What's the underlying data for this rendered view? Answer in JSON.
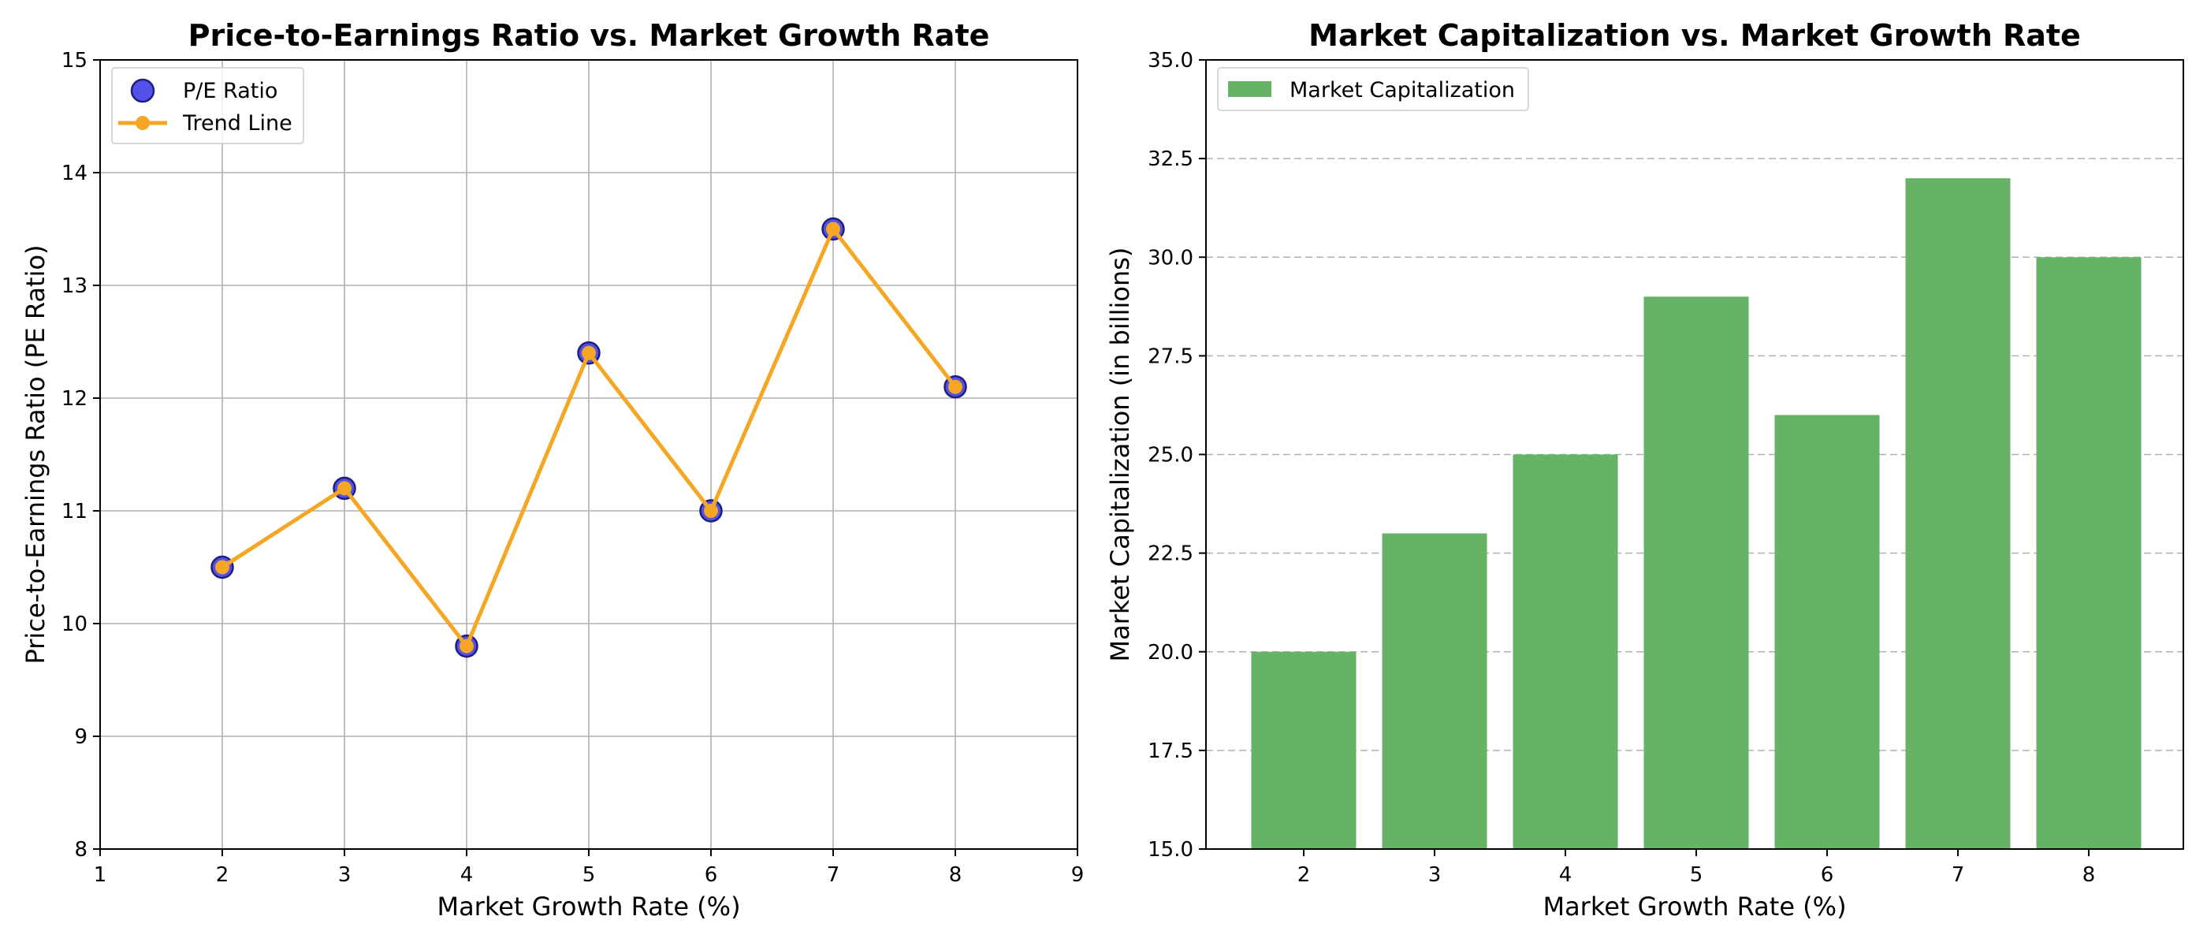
{
  "chart_data": [
    {
      "type": "scatter",
      "title": "Price-to-Earnings Ratio vs. Market Growth Rate",
      "xlabel": "Market Growth Rate (%)",
      "ylabel": "Price-to-Earnings Ratio (PE Ratio)",
      "xlim": [
        1,
        9
      ],
      "ylim": [
        8,
        15
      ],
      "xticks": [
        "1",
        "2",
        "3",
        "4",
        "5",
        "6",
        "7",
        "8",
        "9"
      ],
      "yticks": [
        "8",
        "9",
        "10",
        "11",
        "12",
        "13",
        "14",
        "15"
      ],
      "grid": true,
      "legend_position": "top-left",
      "x": [
        2,
        3,
        4,
        5,
        6,
        7,
        8
      ],
      "series": [
        {
          "name": "P/E Ratio",
          "kind": "scatter",
          "values": [
            10.5,
            11.2,
            9.8,
            12.4,
            11.0,
            13.5,
            12.1
          ],
          "color": "#4b48e8",
          "edge_color": "#1f1f7a"
        },
        {
          "name": "Trend Line",
          "kind": "line",
          "values": [
            10.5,
            11.2,
            9.8,
            12.4,
            11.0,
            13.5,
            12.1
          ],
          "color": "#f5a623"
        }
      ]
    },
    {
      "type": "bar",
      "title": "Market Capitalization vs. Market Growth Rate",
      "xlabel": "Market Growth Rate (%)",
      "ylabel": "Market Capitalization (in billions)",
      "ylim": [
        15.0,
        35.0
      ],
      "yticks": [
        "15.0",
        "17.5",
        "20.0",
        "22.5",
        "25.0",
        "27.5",
        "30.0",
        "32.5",
        "35.0"
      ],
      "grid": "y-dashed",
      "legend_position": "top-left",
      "categories": [
        "2",
        "3",
        "4",
        "5",
        "6",
        "7",
        "8"
      ],
      "series": [
        {
          "name": "Market Capitalization",
          "values": [
            20,
            23,
            25,
            29,
            26,
            32,
            30
          ],
          "color": "#66b266"
        }
      ]
    }
  ]
}
